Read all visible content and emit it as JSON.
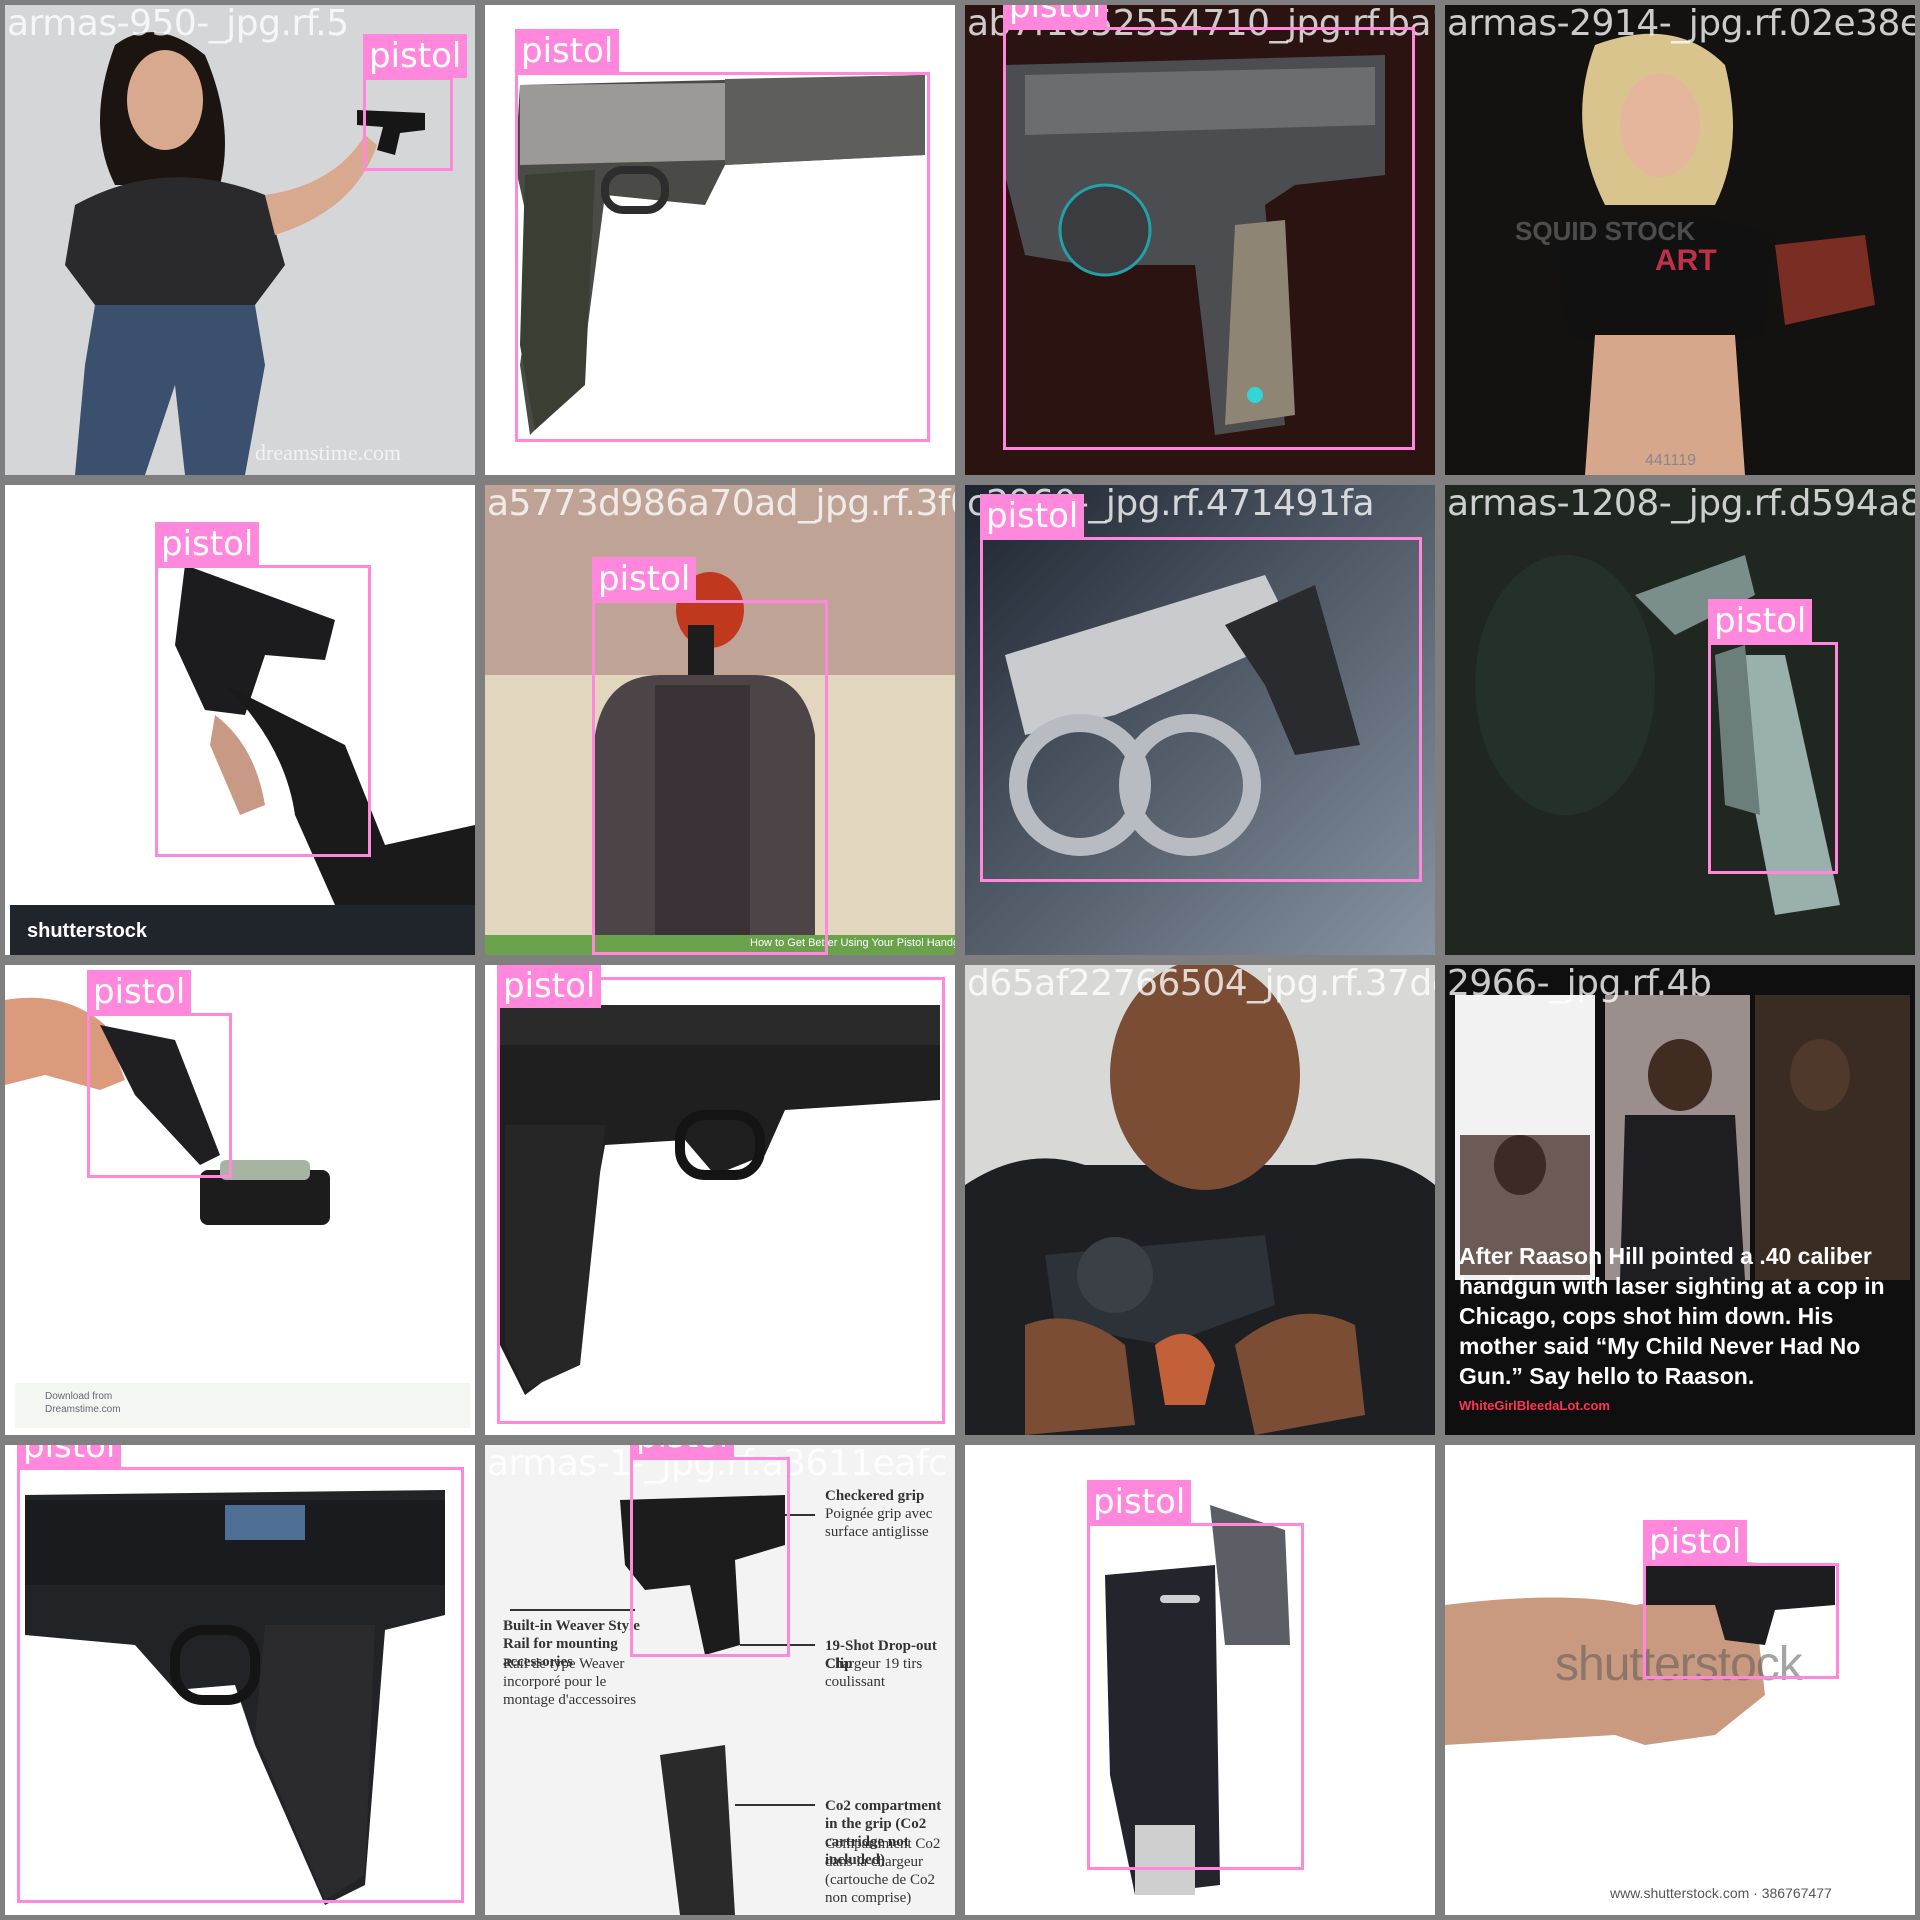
{
  "detection_label": "pistol",
  "box_color": "#ff88dd",
  "tiles": [
    {
      "filename": "armas-950-_jpg.rf.5",
      "box_label": "pistol"
    },
    {
      "filename": "fcd4b29fa9899_jpg.rf.e1cb2dc9a",
      "box_label": "pistol"
    },
    {
      "filename": "ab7f1852554710_jpg.rf.ba129396440f062d",
      "box_label": "pistol"
    },
    {
      "filename": "armas-2914-_jpg.rf.02e38e7",
      "box_label": ""
    },
    {
      "filename": "armas-961-_jpg.rf.66545fc60",
      "box_label": "pistol",
      "watermark": "shutterstock"
    },
    {
      "filename": "a5773d986a70ad_jpg.rf.3f00b434c",
      "box_label": "pistol",
      "watermark": "How to Get Better Using Your Pistol Handgun"
    },
    {
      "filename": "c2960-_jpg.rf.471491fa",
      "box_label": "pistol"
    },
    {
      "filename": "armas-1208-_jpg.rf.d594a8b",
      "box_label": "pistol"
    },
    {
      "filename": "armas-4-_jpg.rf.93f03d65",
      "box_label": "pistol",
      "watermark": "Download from Dreamstime.com"
    },
    {
      "filename": "armas-898-_jpg.rf.b6a9e2",
      "box_label": "pistol"
    },
    {
      "filename": "d65af22766504_jpg.rf.37dc911",
      "box_label": ""
    },
    {
      "filename": "2966-_jpg.rf.4b",
      "box_label": "",
      "caption_text": "After Raason Hill pointed a .40 caliber handgun with laser sighting at a cop in Chicago, cops shot him down. His mother said “My Child Never Had No Gun.” Say hello to Raason.",
      "site": "WhiteGirlBleedaLot.com"
    },
    {
      "filename": "armas-980-_jpg.rf.bb8038",
      "box_label": "pistol"
    },
    {
      "filename": "armas-1-_jpg.rf.a3611eafc",
      "box_label": "pistol",
      "callouts": [
        "Checkered grip",
        "Poignée grip avec surface antiglisse",
        "Built-in Weaver Style Rail for mounting accessories",
        "Rail de type Weaver incorporé pour le montage d'accessoires",
        "19-Shot Drop-out Clip",
        "Chargeur 19 tirs coulissant",
        "Co2 compartment in the grip (Co2 cartridge not included)",
        "Compartiment Co2 dans la chargeur (cartouche de Co2 non comprise)"
      ]
    },
    {
      "filename": "52e48f8983f_jpg.rf.a9f312ba",
      "box_label": "pistol"
    },
    {
      "filename": "e831b955-_jpg.rf.2bd61a11",
      "box_label": "pistol",
      "watermark": "shutterstock",
      "footer": "www.shutterstock.com · 386767477"
    }
  ]
}
